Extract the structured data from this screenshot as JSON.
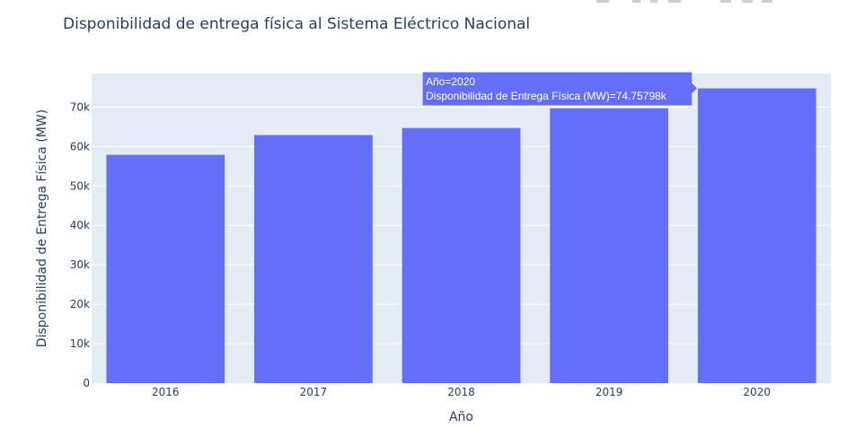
{
  "chart_data": {
    "type": "bar",
    "title": "Disponibilidad de entrega física al Sistema Eléctrico Nacional",
    "xlabel": "Año",
    "ylabel": "Disponibilidad de Entrega Física (MW)",
    "categories": [
      "2016",
      "2017",
      "2018",
      "2019",
      "2020"
    ],
    "values": [
      57900,
      62900,
      64700,
      69700,
      74757.98
    ],
    "ylim": [
      0,
      78500
    ],
    "yticks": [
      0,
      10000,
      20000,
      30000,
      40000,
      50000,
      60000,
      70000
    ],
    "ytick_labels": [
      "0",
      "10k",
      "20k",
      "30k",
      "40k",
      "50k",
      "60k",
      "70k"
    ],
    "bar_color": "#636efa",
    "plot_bg": "#e5ecf6",
    "grid": true,
    "hover": {
      "line1": "Año=2020",
      "line2": "Disponibilidad de Entrega Física (MW)=74.75798k",
      "target_index": 4
    }
  }
}
